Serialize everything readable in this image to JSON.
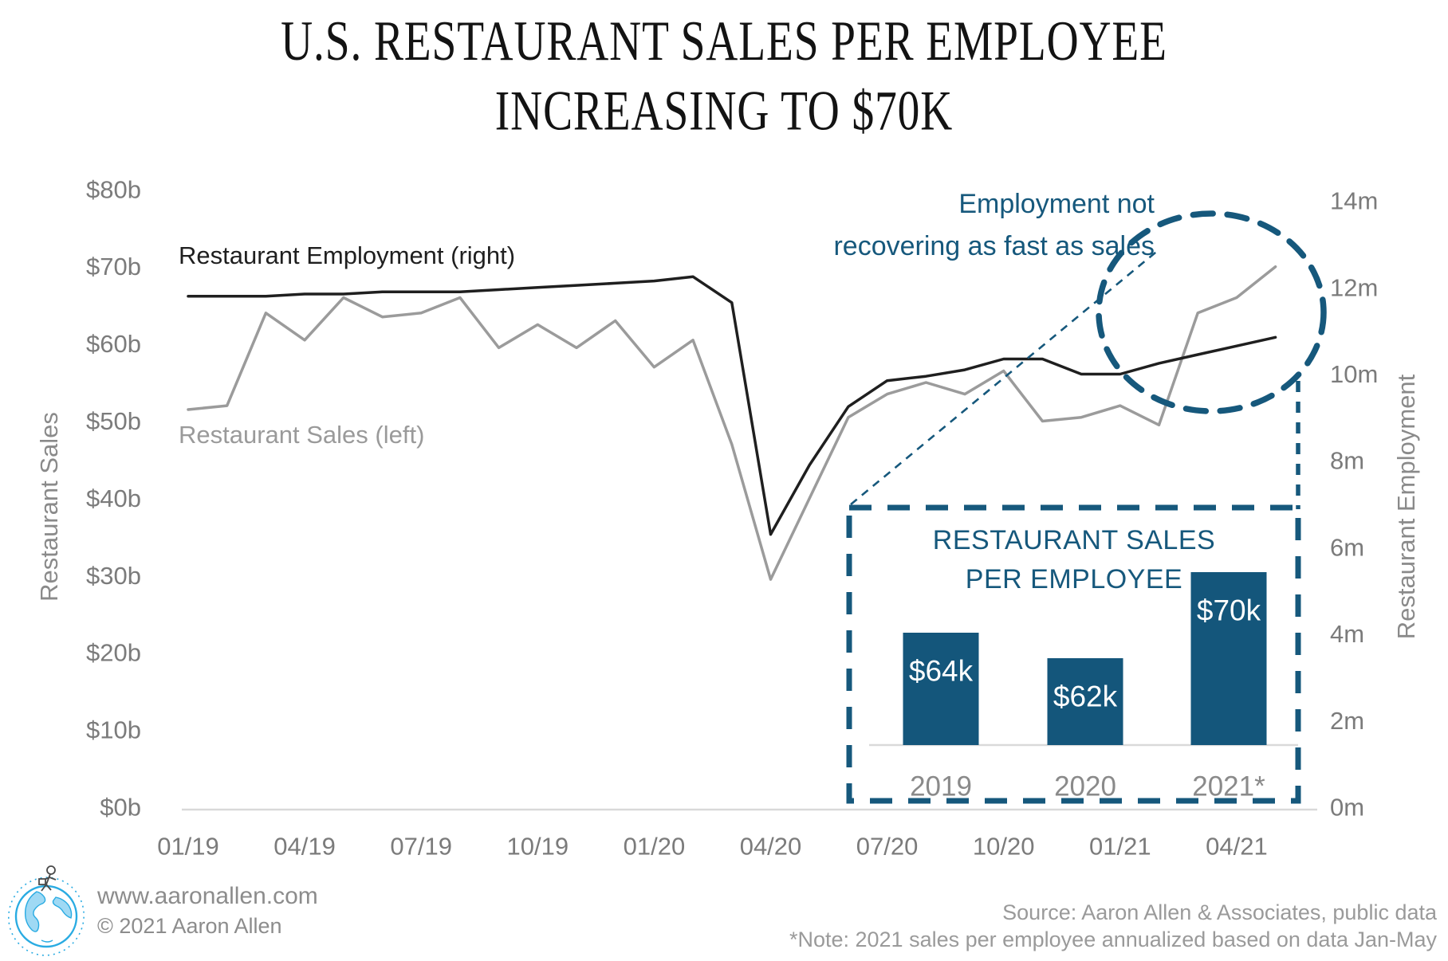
{
  "page": {
    "title_line1": "U.S. RESTAURANT SALES PER EMPLOYEE",
    "title_line2": "INCREASING TO $70K"
  },
  "colors": {
    "teal": "#16587C",
    "bar_fill": "#14567B",
    "sales_line": "#9b9b9b",
    "employment_line": "#1f1f1f",
    "axis_text": "#7b7b7b",
    "year_text": "#8a8a8a",
    "baseline": "#d9d9d9",
    "bar_label_text": "#ffffff",
    "logo_blue": "#29abe2"
  },
  "chart_data": {
    "type": "line",
    "title": "U.S. Restaurant Sales per Employee Increasing to $70k",
    "x": [
      "01/19",
      "02/19",
      "03/19",
      "04/19",
      "05/19",
      "06/19",
      "07/19",
      "08/19",
      "09/19",
      "10/19",
      "11/19",
      "12/19",
      "01/20",
      "02/20",
      "03/20",
      "04/20",
      "05/20",
      "06/20",
      "07/20",
      "08/20",
      "09/20",
      "10/20",
      "11/20",
      "12/20",
      "01/21",
      "02/21",
      "03/21",
      "04/21",
      "05/21"
    ],
    "x_tick_labels": [
      "01/19",
      "04/19",
      "07/19",
      "10/19",
      "01/20",
      "04/20",
      "07/20",
      "10/20",
      "01/21",
      "04/21"
    ],
    "left_axis": {
      "label": "Restaurant Sales",
      "unit": "$ billions",
      "ticks": [
        "$0b",
        "$10b",
        "$20b",
        "$30b",
        "$40b",
        "$50b",
        "$60b",
        "$70b",
        "$80b"
      ],
      "range": [
        0,
        80
      ]
    },
    "right_axis": {
      "label": "Restaurant Employment",
      "unit": "millions",
      "ticks": [
        "0m",
        "2m",
        "4m",
        "6m",
        "8m",
        "10m",
        "12m",
        "14m"
      ],
      "range": [
        0,
        14
      ]
    },
    "series": [
      {
        "name": "Restaurant Sales (left)",
        "axis": "left",
        "values": [
          51.5,
          52,
          64,
          60.5,
          66,
          63.5,
          64,
          66,
          59.5,
          62.5,
          59.5,
          63,
          57,
          60.5,
          47,
          29.5,
          40,
          50.5,
          53.5,
          55,
          53.5,
          56.5,
          50,
          50.5,
          52,
          49.5,
          64,
          66,
          70
        ]
      },
      {
        "name": "Restaurant Employment (right)",
        "axis": "right",
        "values": [
          11.8,
          11.8,
          11.8,
          11.85,
          11.85,
          11.9,
          11.9,
          11.9,
          11.95,
          12.0,
          12.05,
          12.1,
          12.15,
          12.25,
          11.65,
          6.3,
          7.9,
          9.25,
          9.85,
          9.95,
          10.1,
          10.35,
          10.35,
          10.0,
          10.0,
          10.25,
          10.45,
          10.65,
          10.85
        ]
      }
    ],
    "annotation": {
      "line1": "Employment not",
      "line2": "recovering as fast as sales"
    },
    "inset": {
      "type": "bar",
      "title_line1": "RESTAURANT SALES",
      "title_line2": "PER EMPLOYEE",
      "bars": [
        {
          "year": "2019",
          "value": 64,
          "label": "$64k"
        },
        {
          "year": "2020",
          "value": 62,
          "label": "$62k"
        },
        {
          "year": "2021*",
          "value": 70,
          "label": "$70k"
        }
      ]
    }
  },
  "footer": {
    "website": "www.aaronallen.com",
    "copyright": "© 2021 Aaron Allen",
    "source": "Source: Aaron Allen & Associates, public data",
    "note": "*Note: 2021 sales per employee annualized based on data Jan-May"
  }
}
